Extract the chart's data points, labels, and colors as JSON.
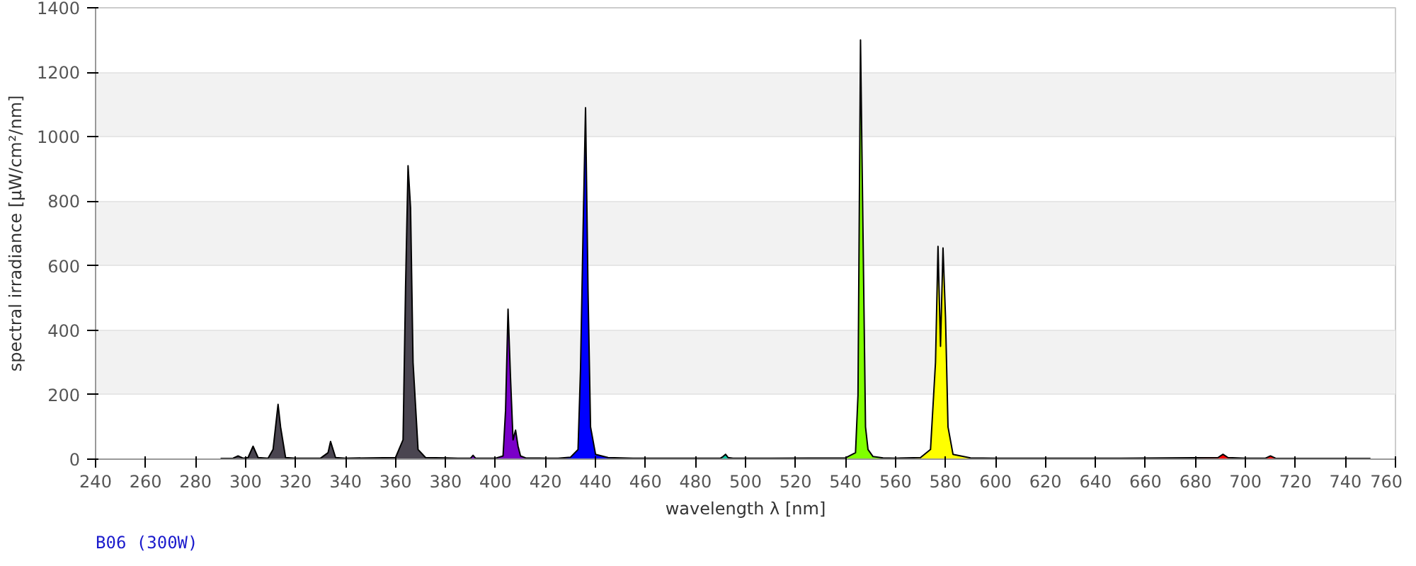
{
  "chart_data": {
    "type": "area",
    "title": "B06 (300W)",
    "xlabel": "wavelength λ [nm]",
    "ylabel": "spectral irradiance [µW/cm²/nm]",
    "xlim": [
      240,
      760
    ],
    "xticks": [
      240,
      260,
      280,
      300,
      320,
      340,
      360,
      380,
      400,
      420,
      440,
      460,
      480,
      500,
      520,
      540,
      560,
      580,
      600,
      620,
      640,
      660,
      680,
      700,
      720,
      740,
      760
    ],
    "ylim": [
      0,
      1400
    ],
    "yticks": [
      0,
      200,
      400,
      600,
      800,
      1000,
      1200,
      1400
    ],
    "grid": "y",
    "series": [
      {
        "color": "#4a4550",
        "x": [
          290,
          295,
          297,
          299,
          301,
          303,
          305,
          309,
          311,
          313,
          314,
          316,
          320,
          330,
          333,
          334,
          336,
          340,
          360,
          363,
          364,
          365,
          366,
          367,
          369,
          372,
          380,
          385
        ],
        "values": [
          2,
          3,
          10,
          3,
          5,
          40,
          5,
          3,
          30,
          170,
          100,
          5,
          3,
          3,
          20,
          55,
          5,
          3,
          5,
          60,
          530,
          910,
          780,
          300,
          30,
          5,
          4,
          3
        ]
      },
      {
        "color": "#7a00c8",
        "x": [
          385,
          390,
          391,
          392,
          400,
          403,
          404,
          405,
          406,
          407,
          408,
          409,
          410,
          412,
          420,
          425
        ],
        "values": [
          3,
          3,
          12,
          3,
          3,
          10,
          150,
          465,
          250,
          60,
          90,
          40,
          10,
          4,
          3,
          3
        ]
      },
      {
        "color": "#0000ff",
        "x": [
          425,
          430,
          433,
          434,
          435,
          436,
          437,
          438,
          440,
          445,
          455
        ],
        "values": [
          3,
          6,
          30,
          280,
          700,
          1090,
          520,
          100,
          15,
          5,
          3
        ]
      },
      {
        "color": "#00c8a0",
        "x": [
          455,
          490,
          491,
          492,
          493,
          495,
          510
        ],
        "values": [
          3,
          3,
          8,
          15,
          5,
          3,
          3
        ]
      },
      {
        "color": "#80ff00",
        "x": [
          510,
          540,
          544,
          545,
          546,
          547,
          548,
          549,
          551,
          555,
          560
        ],
        "values": [
          3,
          4,
          20,
          200,
          1300,
          700,
          100,
          30,
          8,
          4,
          3
        ]
      },
      {
        "color": "#ffff00",
        "x": [
          560,
          570,
          574,
          576,
          577,
          578,
          579,
          580,
          581,
          583,
          590,
          600
        ],
        "values": [
          3,
          5,
          30,
          300,
          660,
          350,
          655,
          440,
          100,
          15,
          4,
          3
        ]
      },
      {
        "color": "#ff0000",
        "x": [
          600,
          650,
          689,
          691,
          693,
          700,
          708,
          710,
          712,
          750
        ],
        "values": [
          3,
          3,
          5,
          15,
          5,
          3,
          3,
          10,
          3,
          2
        ]
      },
      {
        "type": "line",
        "color": "#000000",
        "x": [
          290,
          295,
          297,
          299,
          301,
          303,
          305,
          309,
          311,
          313,
          314,
          316,
          320,
          330,
          333,
          334,
          336,
          340,
          360,
          363,
          364,
          365,
          366,
          367,
          369,
          372,
          380,
          385,
          390,
          391,
          392,
          400,
          403,
          404,
          405,
          406,
          407,
          408,
          409,
          410,
          412,
          420,
          425,
          430,
          433,
          434,
          435,
          436,
          437,
          438,
          440,
          445,
          455,
          490,
          491,
          492,
          493,
          495,
          510,
          540,
          544,
          545,
          546,
          547,
          548,
          549,
          551,
          555,
          560,
          570,
          574,
          576,
          577,
          578,
          579,
          580,
          581,
          583,
          590,
          600,
          650,
          689,
          691,
          693,
          700,
          708,
          710,
          712,
          750
        ],
        "values": [
          2,
          3,
          10,
          3,
          5,
          40,
          5,
          3,
          30,
          170,
          100,
          5,
          3,
          3,
          20,
          55,
          5,
          3,
          5,
          60,
          530,
          910,
          780,
          300,
          30,
          5,
          4,
          3,
          3,
          12,
          3,
          3,
          10,
          150,
          465,
          250,
          60,
          90,
          40,
          10,
          4,
          3,
          3,
          6,
          30,
          280,
          700,
          1090,
          520,
          100,
          15,
          5,
          3,
          3,
          8,
          15,
          5,
          3,
          3,
          4,
          20,
          200,
          1300,
          700,
          100,
          30,
          8,
          4,
          3,
          5,
          30,
          300,
          660,
          350,
          655,
          440,
          100,
          15,
          4,
          3,
          3,
          5,
          15,
          5,
          3,
          3,
          10,
          3,
          2
        ]
      }
    ]
  }
}
